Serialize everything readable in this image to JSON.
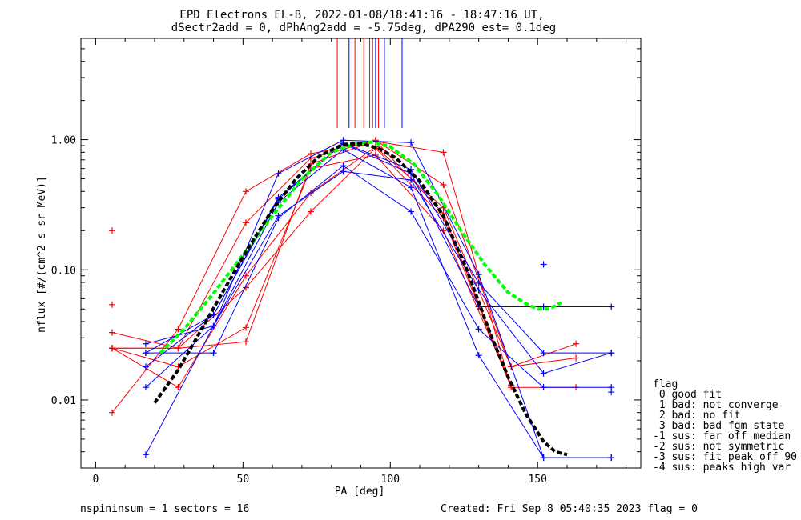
{
  "title_line1": "EPD Electrons EL-B, 2022-01-08/18:41:16 - 18:47:16 UT,",
  "title_line2": "dSectr2add = 0, dPhAng2add = -5.75deg, dPA290_est=   0.1deg",
  "footer_left": "nspininsum =  1  sectors = 16",
  "footer_right": "Created: Fri Sep  8 05:40:35 2023   flag = 0",
  "legend": {
    "title": "flag",
    "items": [
      " 0 good fit",
      " 1 bad: not converge",
      " 2 bad: no fit",
      " 3 bad: bad fgm state",
      "-1 sus: far off median",
      "-2 sus: not symmetric",
      "-3 sus: fit peak off 90",
      "-4 sus: peaks high var"
    ]
  },
  "colors": {
    "red": "#ff0000",
    "blue": "#0000ff",
    "green": "#00ff00",
    "black": "#000000"
  },
  "chart_data": {
    "type": "line",
    "xlabel": "PA [deg]",
    "ylabel": "nflux [#/(cm^2 s sr MeV)]",
    "xlim": [
      -5,
      185
    ],
    "ylim": [
      0.003,
      6.0
    ],
    "yscale": "log",
    "xticks": [
      0,
      50,
      100,
      150
    ],
    "xticklabels": [
      "0",
      "50",
      "100",
      "150"
    ],
    "yticks": [
      0.01,
      0.1,
      1.0
    ],
    "yticklabels": [
      "0.01",
      "0.10",
      "1.00"
    ],
    "vlines_red": [
      82,
      88,
      91,
      93,
      94,
      96
    ],
    "vlines_blue": [
      86,
      87,
      95,
      98,
      104
    ],
    "series": [
      {
        "color": "red",
        "x": [
          5.6,
          28,
          51,
          73,
          95,
          118,
          141,
          163
        ],
        "y": [
          0.008,
          0.035,
          0.4,
          0.78,
          0.97,
          0.8,
          0.0125,
          0.0125
        ]
      },
      {
        "color": "red",
        "x": [
          5.6,
          28,
          51,
          73,
          95,
          118,
          141,
          163
        ],
        "y": [
          0.033,
          0.025,
          0.23,
          0.72,
          0.99,
          0.45,
          0.018,
          0.021
        ]
      },
      {
        "color": "red",
        "x": [
          5.6,
          28,
          51,
          73,
          95,
          118,
          141,
          163
        ],
        "y": [
          0.025,
          0.0125,
          0.09,
          0.39,
          0.88,
          0.3,
          0.018,
          0.027
        ]
      },
      {
        "color": "red",
        "x": [
          5.6,
          28,
          51,
          73,
          95,
          118,
          141
        ],
        "y": [
          0.025,
          0.025,
          0.073,
          0.28,
          0.86,
          0.25,
          0.0125
        ]
      },
      {
        "color": "red",
        "x": [
          5.6,
          28,
          51,
          73,
          95,
          118,
          141
        ],
        "y": [
          0.025,
          0.018,
          0.036,
          0.6,
          0.76,
          0.2,
          0.013
        ]
      },
      {
        "color": "red",
        "x": [
          5.6,
          28,
          51,
          73,
          95,
          118,
          141
        ],
        "y": [
          0.025,
          0.025,
          0.028,
          0.65,
          0.98,
          0.27,
          0.013
        ]
      },
      {
        "color": "blue",
        "x": [
          17,
          40,
          62,
          84,
          107,
          130,
          152,
          175
        ],
        "y": [
          0.0038,
          0.037,
          0.55,
          0.99,
          0.95,
          0.092,
          0.0036,
          0.0036
        ]
      },
      {
        "color": "blue",
        "x": [
          17,
          40,
          62,
          84,
          107,
          130,
          152,
          175
        ],
        "y": [
          0.018,
          0.045,
          0.36,
          0.93,
          0.55,
          0.052,
          0.052,
          0.052
        ]
      },
      {
        "color": "blue",
        "x": [
          17,
          40,
          62,
          84,
          107,
          130,
          152,
          175
        ],
        "y": [
          0.023,
          0.023,
          0.25,
          0.63,
          0.28,
          0.035,
          0.0125,
          0.0125
        ]
      },
      {
        "color": "blue",
        "x": [
          17,
          40,
          62,
          84,
          107,
          130,
          152,
          175
        ],
        "y": [
          0.0125,
          0.037,
          0.33,
          0.84,
          0.43,
          0.022,
          0.0036,
          0.0036
        ]
      },
      {
        "color": "blue",
        "x": [
          17,
          40,
          62,
          84,
          107,
          130,
          152,
          175
        ],
        "y": [
          0.027,
          0.037,
          0.26,
          0.57,
          0.49,
          0.07,
          0.016,
          0.023
        ]
      },
      {
        "color": "blue",
        "x": [
          17,
          40,
          62,
          84,
          107,
          130,
          152,
          175
        ],
        "y": [
          0.023,
          0.045,
          0.35,
          0.94,
          0.59,
          0.079,
          0.023,
          0.023
        ]
      }
    ],
    "isolated_markers": [
      {
        "color": "red",
        "x": 5.6,
        "y": 0.2
      },
      {
        "color": "red",
        "x": 5.6,
        "y": 0.054
      },
      {
        "color": "blue",
        "x": 152,
        "y": 0.11
      },
      {
        "color": "blue",
        "x": 175,
        "y": 0.0115
      }
    ],
    "fits": [
      {
        "color": "green",
        "style": "dashed",
        "x": [
          22,
          30,
          40,
          50,
          60,
          70,
          80,
          88,
          94,
          100,
          108,
          116,
          124,
          132,
          140,
          146,
          150,
          154,
          158
        ],
        "y": [
          0.023,
          0.035,
          0.066,
          0.13,
          0.26,
          0.5,
          0.8,
          0.93,
          0.96,
          0.88,
          0.65,
          0.38,
          0.2,
          0.11,
          0.067,
          0.055,
          0.05,
          0.05,
          0.056
        ]
      },
      {
        "color": "black",
        "style": "dashed",
        "x": [
          20,
          28,
          36,
          44,
          52,
          60,
          68,
          76,
          84,
          90,
          96,
          102,
          110,
          118,
          126,
          134,
          140,
          146,
          152,
          156,
          160
        ],
        "y": [
          0.0095,
          0.017,
          0.035,
          0.073,
          0.15,
          0.29,
          0.5,
          0.75,
          0.92,
          0.93,
          0.86,
          0.72,
          0.48,
          0.26,
          0.1,
          0.032,
          0.015,
          0.0078,
          0.0048,
          0.004,
          0.0038
        ]
      }
    ]
  }
}
